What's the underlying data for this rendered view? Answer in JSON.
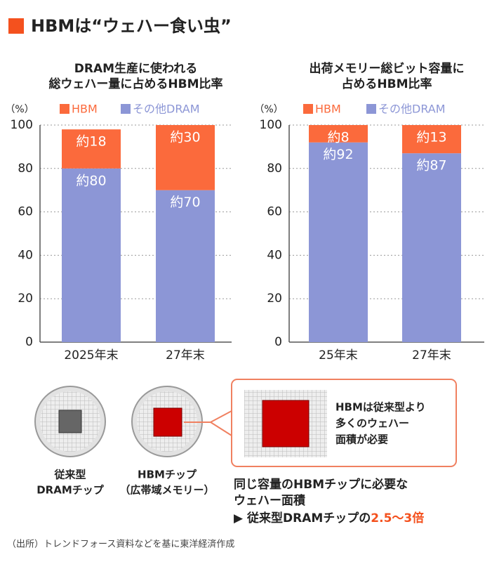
{
  "header": {
    "title": "HBMは“ウェハー食い虫”"
  },
  "chart_data": [
    {
      "type": "bar",
      "stacked": true,
      "title": [
        "DRAM生産に使われる",
        "総ウェハー量に占めるHBM比率"
      ],
      "y_unit": "（%）",
      "categories": [
        "2025年末",
        "27年末"
      ],
      "series": [
        {
          "name": "HBM",
          "color": "#fb6a3c",
          "values": [
            18,
            30
          ],
          "value_labels": [
            "約18",
            "約30"
          ]
        },
        {
          "name": "その他DRAM",
          "color": "#8c96d6",
          "values": [
            80,
            70
          ],
          "value_labels": [
            "約80",
            "約70"
          ]
        }
      ],
      "ylim": [
        0,
        100
      ],
      "yticks": [
        0,
        20,
        40,
        60,
        80,
        100
      ],
      "grid": true
    },
    {
      "type": "bar",
      "stacked": true,
      "title": [
        "出荷メモリー総ビット容量に",
        "占めるHBM比率"
      ],
      "y_unit": "（%）",
      "categories": [
        "25年末",
        "27年末"
      ],
      "series": [
        {
          "name": "HBM",
          "color": "#fb6a3c",
          "values": [
            8,
            13
          ],
          "value_labels": [
            "約8",
            "約13"
          ]
        },
        {
          "name": "その他DRAM",
          "color": "#8c96d6",
          "values": [
            92,
            87
          ],
          "value_labels": [
            "約92",
            "約87"
          ]
        }
      ],
      "ylim": [
        0,
        100
      ],
      "yticks": [
        0,
        20,
        40,
        60,
        80,
        100
      ],
      "grid": true
    }
  ],
  "diagram": {
    "chips": [
      {
        "label": [
          "従来型",
          "DRAMチップ"
        ]
      },
      {
        "label": [
          "HBMチップ",
          "（広帯域メモリー）"
        ]
      }
    ],
    "callout": [
      "HBMは従来型より",
      "多くのウェハー",
      "面積が必要"
    ],
    "caption": [
      "同じ容量のHBMチップに必要な",
      "ウェハー面積"
    ],
    "emphasis": "▶ 従来型DRAMチップの",
    "ratio": "2.5〜3倍"
  },
  "source": "（出所）トレンドフォース資料などを基に東洋経済作成"
}
